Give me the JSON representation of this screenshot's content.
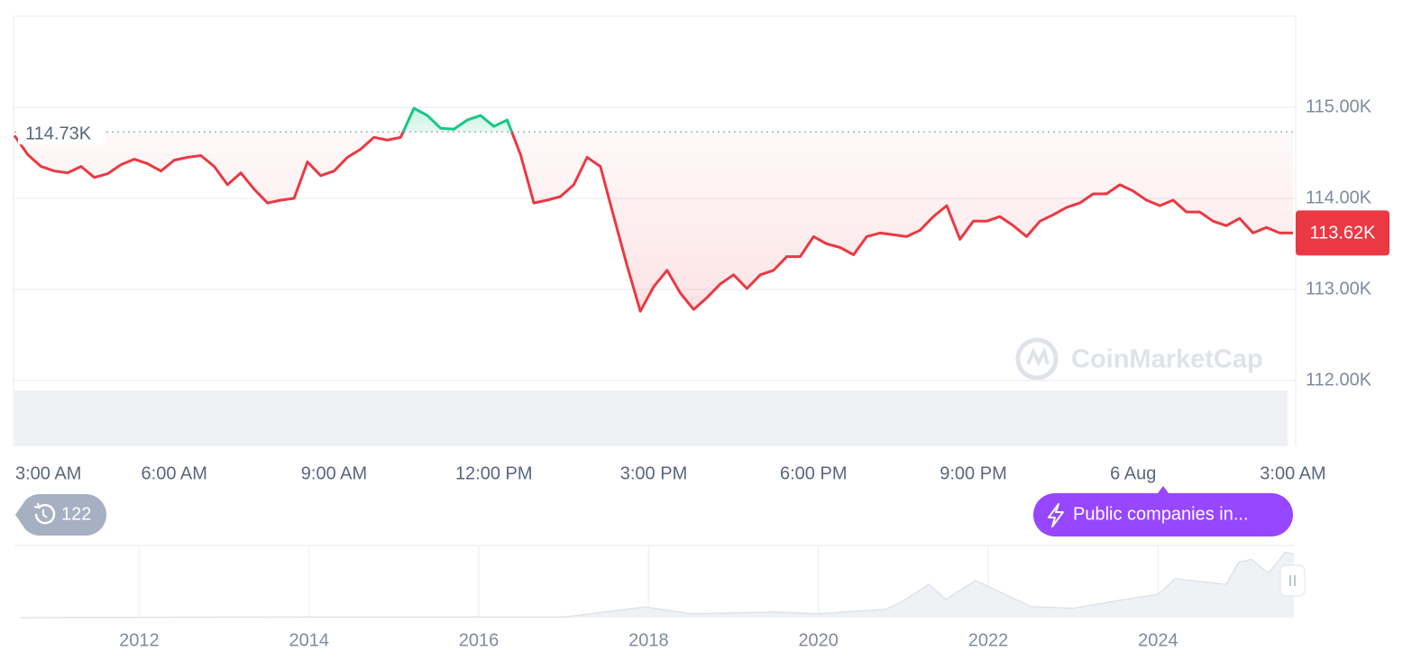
{
  "chart_data": [
    {
      "type": "line",
      "categories": [
        "3:00 AM",
        null,
        null,
        null,
        null,
        null,
        null,
        null,
        null,
        null,
        null,
        null,
        "6:00 AM",
        null,
        null,
        null,
        null,
        null,
        null,
        null,
        null,
        null,
        null,
        null,
        "9:00 AM",
        null,
        null,
        null,
        null,
        null,
        null,
        null,
        null,
        null,
        null,
        null,
        "12:00 PM",
        null,
        null,
        null,
        null,
        null,
        null,
        null,
        null,
        null,
        null,
        null,
        "3:00 PM",
        null,
        null,
        null,
        null,
        null,
        null,
        null,
        null,
        null,
        null,
        null,
        "6:00 PM",
        null,
        null,
        null,
        null,
        null,
        null,
        null,
        null,
        null,
        null,
        null,
        "9:00 PM",
        null,
        null,
        null,
        null,
        null,
        null,
        null,
        null,
        null,
        null,
        null,
        "6 Aug",
        null,
        null,
        null,
        null,
        null,
        null,
        null,
        null,
        null,
        null,
        null,
        "3:00 AM"
      ],
      "values": [
        114690,
        114480,
        114350,
        114300,
        114280,
        114350,
        114230,
        114270,
        114370,
        114430,
        114380,
        114300,
        114420,
        114450,
        114470,
        114350,
        114150,
        114280,
        114100,
        113950,
        113980,
        114000,
        114400,
        114250,
        114300,
        114450,
        114540,
        114670,
        114640,
        114670,
        114990,
        114910,
        114770,
        114760,
        114860,
        114910,
        114790,
        114860,
        114480,
        113950,
        113980,
        114020,
        114150,
        114450,
        114350,
        113800,
        113260,
        112760,
        113030,
        113210,
        112960,
        112780,
        112910,
        113060,
        113160,
        113010,
        113160,
        113210,
        113360,
        113360,
        113580,
        113500,
        113460,
        113380,
        113580,
        113620,
        113600,
        113580,
        113650,
        113800,
        113920,
        113550,
        113750,
        113750,
        113800,
        113700,
        113580,
        113750,
        113820,
        113900,
        113950,
        114050,
        114050,
        114150,
        114080,
        113980,
        113920,
        113980,
        113850,
        113850,
        113750,
        113700,
        113780,
        113620,
        113680,
        113620,
        113620
      ],
      "last_value_label": "113.62K",
      "reference": {
        "value": 114730,
        "label": "114.73K"
      },
      "color_up": "#16c784",
      "color_down": "#ea3943",
      "ylim": [
        112000,
        116000
      ],
      "yticks": [
        {
          "value": 112000,
          "label": "112.00K"
        },
        {
          "value": 113000,
          "label": "113.00K"
        },
        {
          "value": 114000,
          "label": "114.00K"
        },
        {
          "value": 115000,
          "label": "115.00K"
        }
      ],
      "grid": true
    },
    {
      "type": "area",
      "x": [
        2010.6,
        2013.9,
        2017.0,
        2017.96,
        2018.5,
        2019.5,
        2020.0,
        2020.8,
        2021.0,
        2021.3,
        2021.5,
        2021.85,
        2022.5,
        2023.0,
        2023.5,
        2024.0,
        2024.2,
        2024.8,
        2024.95,
        2025.1,
        2025.3,
        2025.5,
        2025.6
      ],
      "values": [
        0,
        1000,
        1000,
        19000,
        7000,
        10000,
        7000,
        15000,
        30000,
        60000,
        33000,
        67000,
        20000,
        16500,
        30000,
        42000,
        70000,
        60000,
        100000,
        105000,
        80000,
        118000,
        114000
      ],
      "xlim": [
        2010.53,
        2025.6
      ],
      "xticks": [
        2012,
        2014,
        2016,
        2018,
        2020,
        2022,
        2024
      ],
      "ylim": [
        0,
        130000
      ],
      "color": "#dfe3e8",
      "grid": true
    }
  ],
  "watermark": "CoinMarketCap",
  "badge": {
    "count": 122
  },
  "button": {
    "label": "Public companies in..."
  }
}
